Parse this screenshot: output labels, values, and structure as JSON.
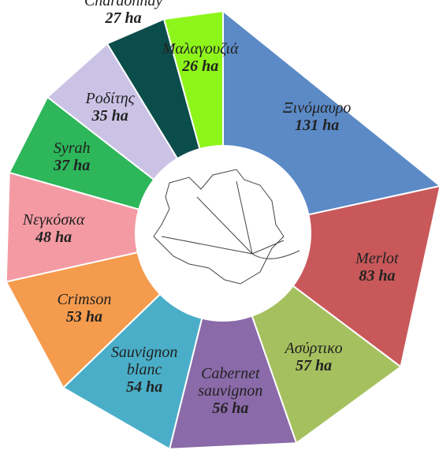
{
  "chart_data": {
    "type": "donut",
    "categories": [
      "Ξινόμαυρο",
      "Merlot",
      "Ασύρτικο",
      "Cabernet sauvignon",
      "Sauvignon blanc",
      "Crimson",
      "Νεγκόσκα",
      "Syrah",
      "Ροδίτης",
      "Chardonnay",
      "Μαλαγουζιά"
    ],
    "values": [
      131,
      83,
      57,
      56,
      54,
      53,
      48,
      37,
      35,
      27,
      26
    ],
    "value_labels": [
      "131 ha",
      "83 ha",
      "57 ha",
      "56 ha",
      "54 ha",
      "53 ha",
      "48 ha",
      "37 ha",
      "35 ha",
      "27 ha",
      "26 ha"
    ],
    "colors": [
      "#5b8ac6",
      "#c9585a",
      "#a5c05e",
      "#8a6aa8",
      "#4aaec8",
      "#f59b4d",
      "#f49aa3",
      "#2db65a",
      "#cbc3e6",
      "#0b4d4a",
      "#8ef51a"
    ]
  }
}
